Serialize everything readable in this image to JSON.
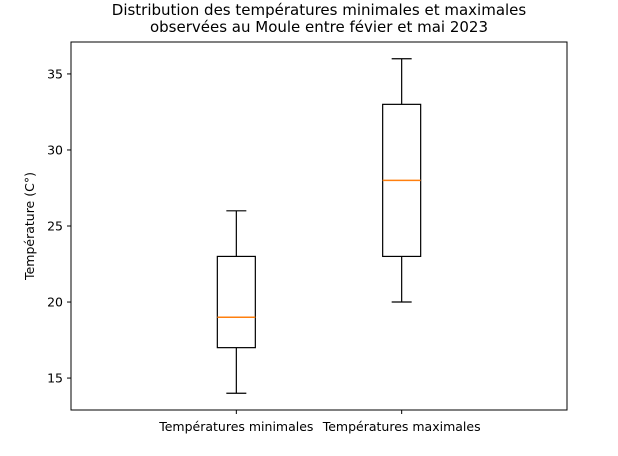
{
  "chart_data": {
    "type": "boxplot",
    "title": "Distribution des températures minimales et maximales\nobservées au Moule entre févier et mai 2023",
    "xlabel": "",
    "ylabel": "Température (C°)",
    "ylim": [
      12.9,
      37.1
    ],
    "yticks": [
      15,
      20,
      25,
      30,
      35
    ],
    "categories": [
      "Températures minimales",
      "Températures maximales"
    ],
    "boxes": [
      {
        "whisker_low": 14,
        "q1": 17,
        "median": 19,
        "q3": 23,
        "whisker_high": 26
      },
      {
        "whisker_low": 20,
        "q1": 23,
        "median": 28,
        "q3": 33,
        "whisker_high": 36
      }
    ],
    "colors": {
      "box": "#000000",
      "median": "#ff7f0e",
      "frame": "#000000"
    },
    "grid": false
  }
}
